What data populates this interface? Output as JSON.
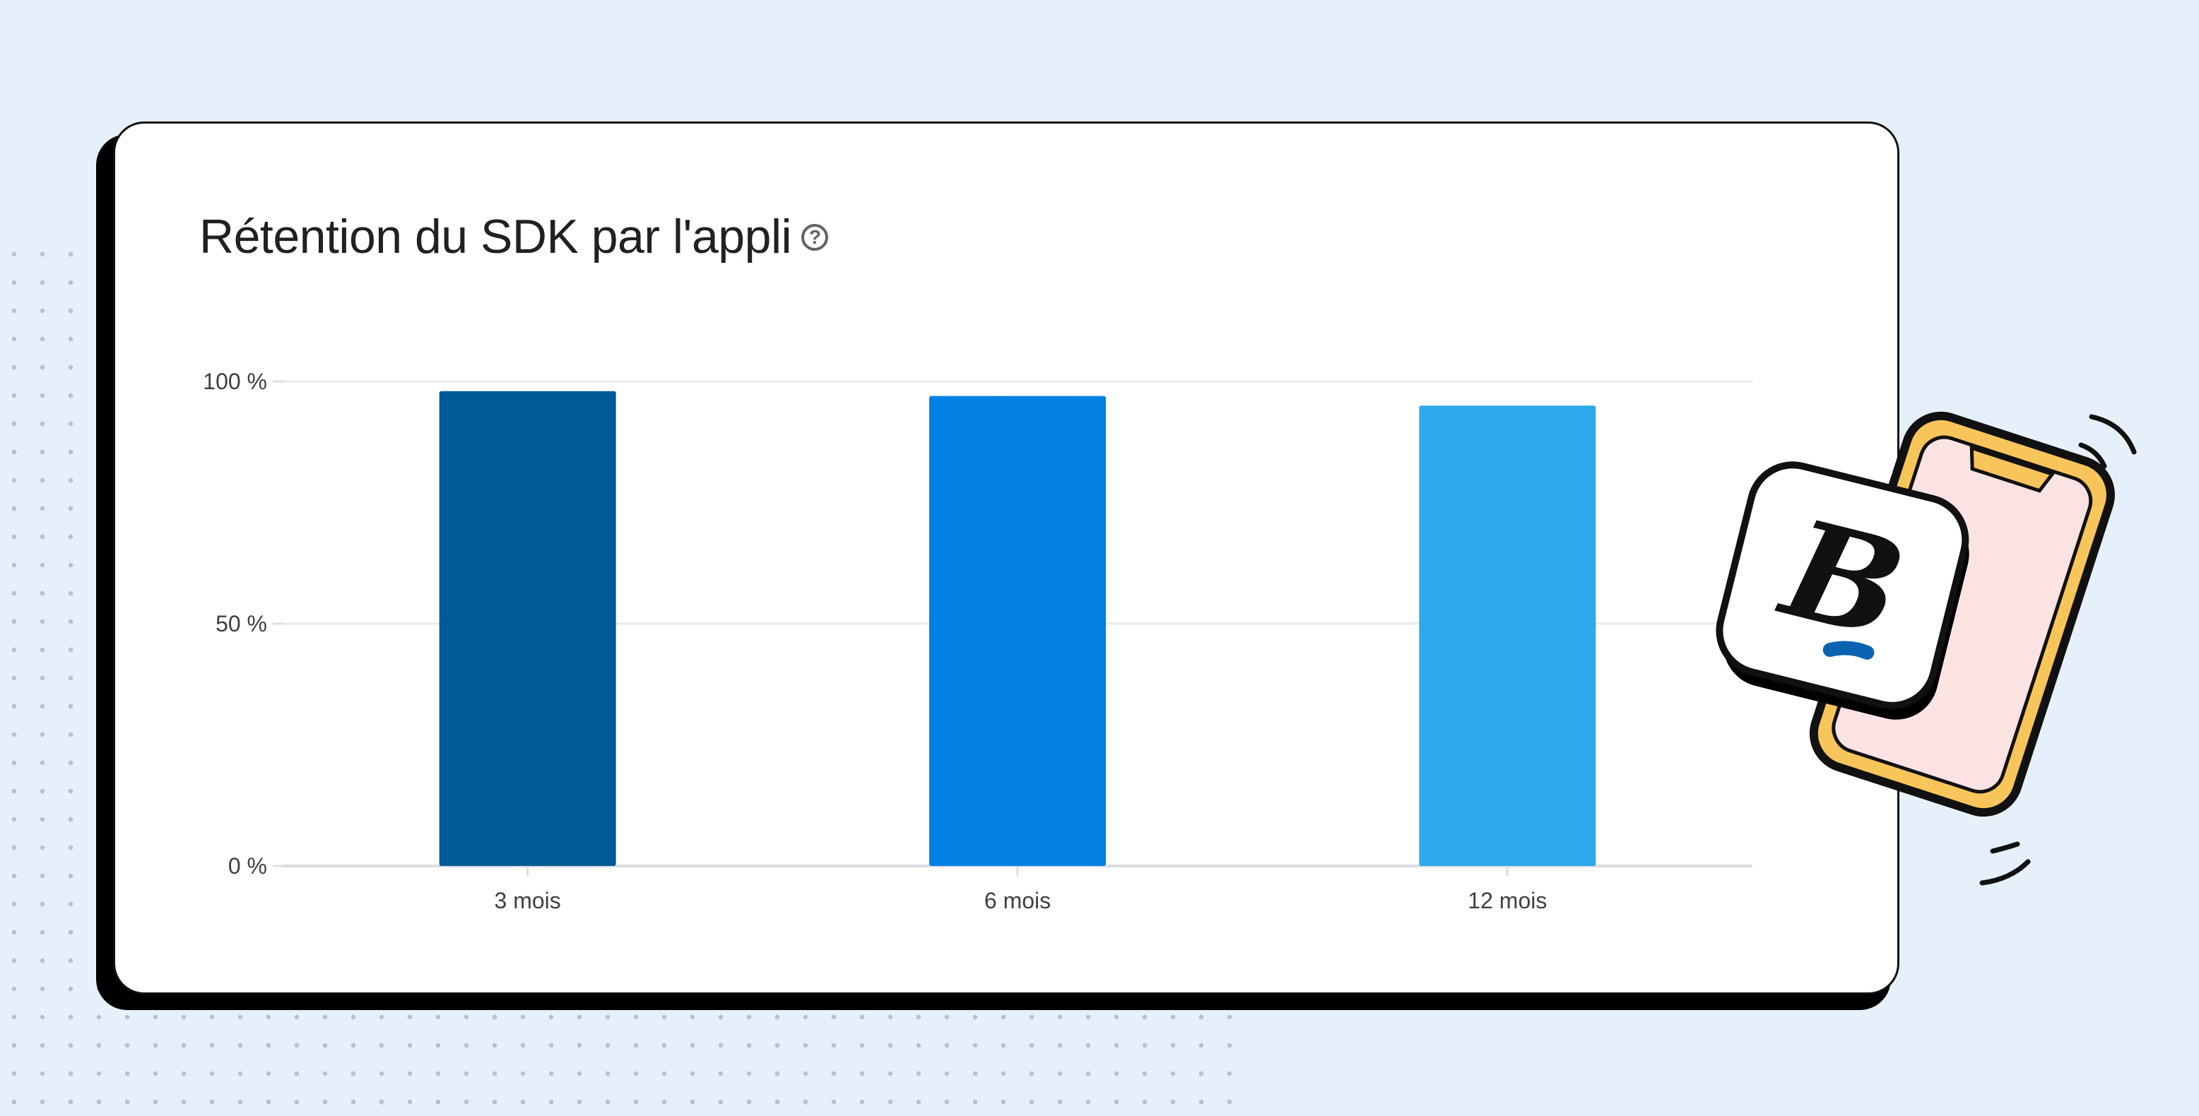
{
  "title": "Rétention du SDK par l'appli",
  "help_icon": "?",
  "chart_data": {
    "type": "bar",
    "title": "Rétention du SDK par l'appli",
    "categories": [
      "3 mois",
      "6 mois",
      "12 mois"
    ],
    "values": [
      98,
      97,
      95
    ],
    "colors": [
      "#015a96",
      "#0280e3",
      "#2ea9ec"
    ],
    "ylim": [
      0,
      100
    ],
    "yticks": [
      0,
      50,
      100
    ],
    "ytick_labels": [
      "0 %",
      "50 %",
      "100 %"
    ],
    "xlabel": "",
    "ylabel": "",
    "grid": true
  },
  "illustration": {
    "name": "phone-app-icon",
    "logo_letter": "B"
  }
}
